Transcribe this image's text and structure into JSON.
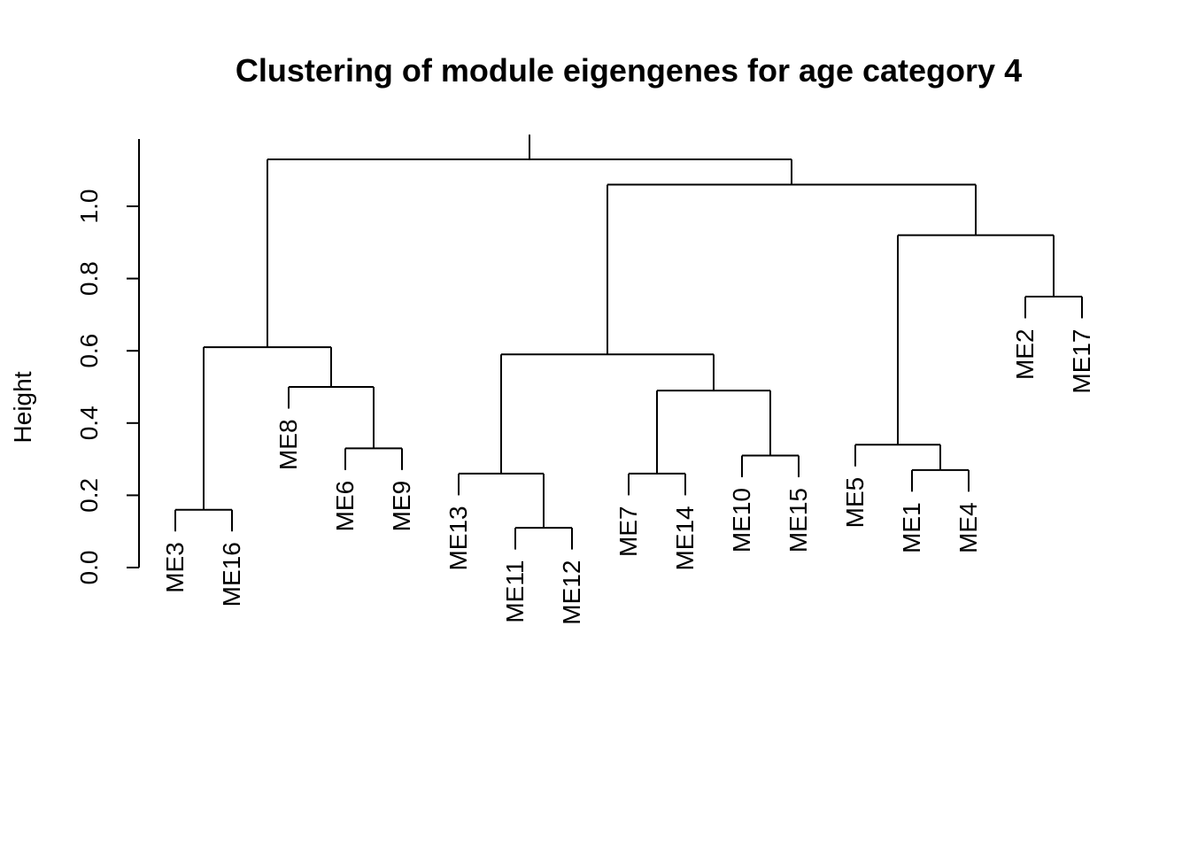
{
  "chart_data": {
    "type": "dendrogram",
    "title": "Clustering of module eigengenes for age category  4",
    "ylabel": "Height",
    "xlabel": "",
    "ylim": [
      0,
      1.2
    ],
    "yticks": [
      0.0,
      0.2,
      0.4,
      0.6,
      0.8,
      1.0
    ],
    "ytick_labels": [
      "0.0",
      "0.2",
      "0.4",
      "0.6",
      "0.8",
      "1.0"
    ],
    "leaves": [
      "ME3",
      "ME16",
      "ME8",
      "ME6",
      "ME9",
      "ME13",
      "ME11",
      "ME12",
      "ME7",
      "ME14",
      "ME10",
      "ME15",
      "ME5",
      "ME1",
      "ME4",
      "ME2",
      "ME17"
    ],
    "merges": [
      {
        "left": "ME3",
        "right": "ME16",
        "height": 0.16
      },
      {
        "left": "ME6",
        "right": "ME9",
        "height": 0.33
      },
      {
        "left": "ME8",
        "right": {
          "merge": 1
        },
        "height": 0.5
      },
      {
        "left": {
          "merge": 0
        },
        "right": {
          "merge": 2
        },
        "height": 0.61
      },
      {
        "left": "ME11",
        "right": "ME12",
        "height": 0.11
      },
      {
        "left": "ME13",
        "right": {
          "merge": 4
        },
        "height": 0.26
      },
      {
        "left": "ME7",
        "right": "ME14",
        "height": 0.26
      },
      {
        "left": "ME10",
        "right": "ME15",
        "height": 0.31
      },
      {
        "left": {
          "merge": 6
        },
        "right": {
          "merge": 7
        },
        "height": 0.49
      },
      {
        "left": {
          "merge": 5
        },
        "right": {
          "merge": 8
        },
        "height": 0.59
      },
      {
        "left": "ME1",
        "right": "ME4",
        "height": 0.27
      },
      {
        "left": "ME5",
        "right": {
          "merge": 10
        },
        "height": 0.34
      },
      {
        "left": "ME2",
        "right": "ME17",
        "height": 0.75
      },
      {
        "left": {
          "merge": 11
        },
        "right": {
          "merge": 12
        },
        "height": 0.92
      },
      {
        "left": {
          "merge": 9
        },
        "right": {
          "merge": 13
        },
        "height": 1.06
      },
      {
        "left": {
          "merge": 3
        },
        "right": {
          "merge": 14
        },
        "height": 1.13
      }
    ],
    "leaf_stem_length": 0.06,
    "grid": false,
    "legend": "none"
  }
}
